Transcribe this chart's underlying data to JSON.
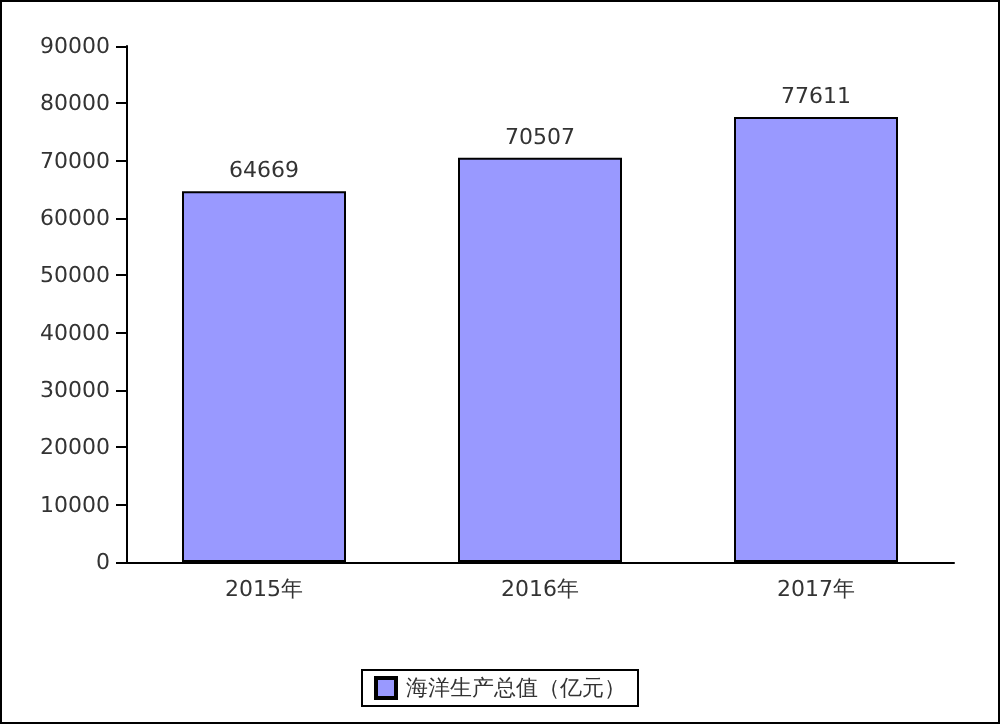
{
  "chart_data": {
    "type": "bar",
    "categories": [
      "2015年",
      "2016年",
      "2017年"
    ],
    "series": [
      {
        "name": "海洋生产总值（亿元）",
        "color": "#9999ff",
        "values": [
          64669,
          70507,
          77611
        ]
      }
    ],
    "ylim": [
      0,
      90000
    ],
    "yticks": [
      0,
      10000,
      20000,
      30000,
      40000,
      50000,
      60000,
      70000,
      80000,
      90000
    ],
    "data_labels": true,
    "legend": "bottom",
    "grid": false
  }
}
